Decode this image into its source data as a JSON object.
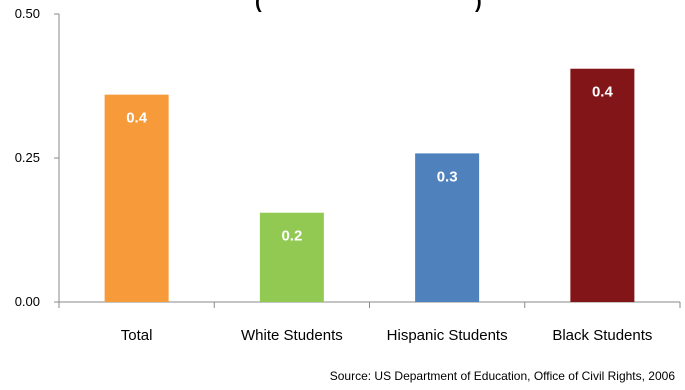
{
  "chart_data": {
    "type": "bar",
    "title_fragment": "(",
    "title_fragment_end": ")",
    "categories": [
      "Total",
      "White Students",
      "Hispanic Students",
      "Black Students"
    ],
    "values": [
      0.36,
      0.155,
      0.258,
      0.405
    ],
    "data_labels": [
      "0.4",
      "0.2",
      "0.3",
      "0.4"
    ],
    "colors": [
      "#F79A3A",
      "#92C953",
      "#4F81BD",
      "#821518"
    ],
    "yticks": [
      "0.00",
      "0.25",
      "0.50"
    ],
    "ylim": [
      0,
      0.5
    ],
    "grid": false,
    "legend": "none"
  },
  "source": "Source:  US Department of Education, Office of Civil Rights, 2006"
}
